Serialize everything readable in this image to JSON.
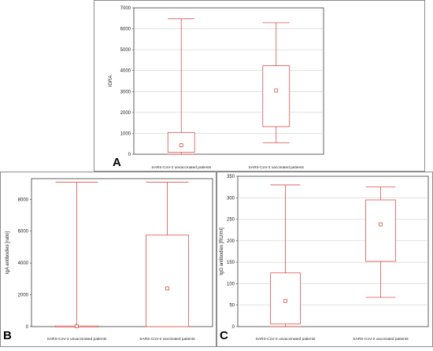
{
  "colors": {
    "box": "#d9534f",
    "grid": "#d0d0d0"
  },
  "chart_data": [
    {
      "type": "box",
      "panel_label": "A",
      "ylabel": "IGRA",
      "ylim": [
        0,
        7000
      ],
      "yticks": [
        0,
        1000,
        2000,
        3000,
        4000,
        5000,
        6000,
        7000
      ],
      "grid": true,
      "categories": [
        "SARS-CoV-2 unvaccinated patients",
        "SARS-CoV-2 vaccinated patients"
      ],
      "boxes": [
        {
          "min": 0,
          "q1": 100,
          "median": 430,
          "q3": 1040,
          "max": 6480
        },
        {
          "min": 550,
          "q1": 1320,
          "median": 3050,
          "q3": 4230,
          "max": 6290
        }
      ]
    },
    {
      "type": "box",
      "panel_label": "B",
      "ylabel": "IgA antibodies [ratio]",
      "ylim": [
        0,
        9300
      ],
      "yticks": [
        0,
        2000,
        4000,
        6000,
        8000
      ],
      "grid": false,
      "categories": [
        "SARS-CoV-2 unvaccinated patients",
        "SARS-CoV-2 vaccinated patients"
      ],
      "boxes": [
        {
          "min": 0,
          "q1": 0,
          "median": 20,
          "q3": 40,
          "max": 9080
        },
        {
          "min": 0,
          "q1": 0,
          "median": 2400,
          "q3": 5750,
          "max": 9080
        }
      ]
    },
    {
      "type": "box",
      "panel_label": "C",
      "ylabel": "IgG antibodies [RU/ml]",
      "ylim": [
        0,
        350
      ],
      "yticks": [
        0,
        50,
        100,
        150,
        200,
        250,
        300,
        350
      ],
      "grid": true,
      "categories": [
        "SARS-CoV-2 unvaccinated patients",
        "SARS-CoV-2 vaccinated patients"
      ],
      "boxes": [
        {
          "min": 0,
          "q1": 6,
          "median": 60,
          "q3": 125,
          "max": 330
        },
        {
          "min": 68,
          "q1": 152,
          "median": 238,
          "q3": 295,
          "max": 325
        }
      ]
    }
  ]
}
